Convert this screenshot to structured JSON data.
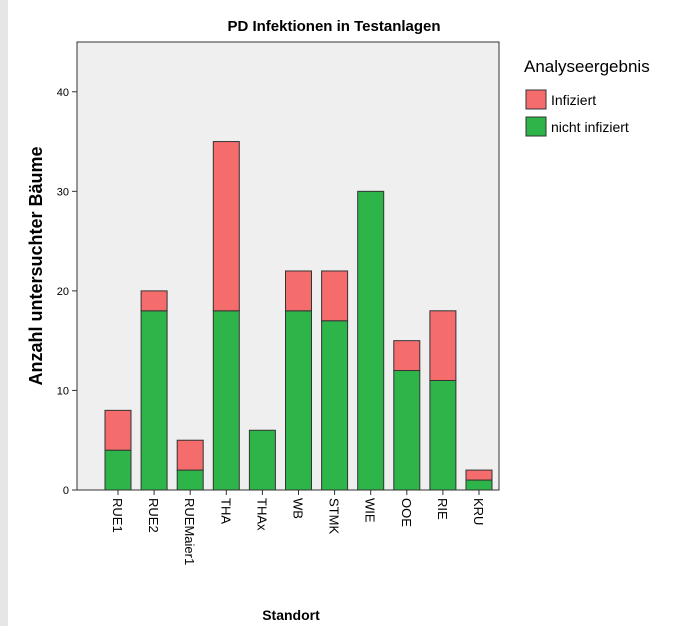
{
  "chart_data": {
    "type": "bar",
    "stacked": true,
    "title": "PD Infektionen in Testanlagen",
    "xlabel": "Standort",
    "ylabel": "Anzahl untersuchter Bäume",
    "ylim": [
      0,
      45
    ],
    "yticks": [
      0,
      10,
      20,
      30,
      40
    ],
    "grid": false,
    "legend_position": "right",
    "legend_title": "Analyseergebnis",
    "categories": [
      "RUE1",
      "RUE2",
      "RUEMaier1",
      "THA",
      "THAx",
      "WB",
      "STMK",
      "WIE",
      "OOE",
      "RIE",
      "KRU"
    ],
    "series": [
      {
        "name": "nicht infiziert",
        "color": "#2db54a",
        "values": [
          4,
          18,
          2,
          18,
          6,
          18,
          17,
          30,
          12,
          11,
          1
        ]
      },
      {
        "name": "Infiziert",
        "color": "#f56c6c",
        "values": [
          4,
          2,
          3,
          17,
          0,
          4,
          5,
          0,
          3,
          7,
          1
        ]
      }
    ],
    "legend_order": [
      "Infiziert",
      "nicht infiziert"
    ],
    "colors": {
      "plot_background": "#efefef",
      "bar_stroke": "#333333",
      "axis": "#333333"
    }
  }
}
